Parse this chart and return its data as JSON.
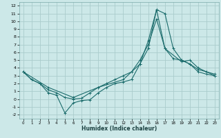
{
  "xlabel": "Humidex (Indice chaleur)",
  "bg_color": "#cce8e8",
  "grid_color": "#aacccc",
  "line_color": "#1a6b6b",
  "xlim": [
    -0.5,
    23.5
  ],
  "ylim": [
    -2.5,
    12.5
  ],
  "xticks": [
    0,
    1,
    2,
    3,
    4,
    5,
    6,
    7,
    8,
    9,
    10,
    11,
    12,
    13,
    14,
    15,
    16,
    17,
    18,
    19,
    20,
    21,
    22,
    23
  ],
  "yticks": [
    -2,
    -1,
    0,
    1,
    2,
    3,
    4,
    5,
    6,
    7,
    8,
    9,
    10,
    11,
    12
  ],
  "line1_x": [
    0,
    1,
    2,
    3,
    4,
    5,
    6,
    7,
    8,
    9,
    10,
    11,
    12,
    13,
    14,
    15,
    16,
    17,
    18,
    19,
    20,
    21,
    22,
    23
  ],
  "line1_y": [
    3.5,
    2.5,
    2.0,
    0.8,
    0.5,
    -1.8,
    -0.5,
    -0.2,
    -0.1,
    0.8,
    1.5,
    2.0,
    2.2,
    2.5,
    4.5,
    7.5,
    11.5,
    11.0,
    6.5,
    5.0,
    4.5,
    3.5,
    3.2,
    3.0
  ],
  "line2_x": [
    0,
    1,
    2,
    3,
    4,
    5,
    6,
    7,
    8,
    9,
    10,
    11,
    12,
    13,
    14,
    15,
    16,
    17,
    18,
    19,
    20,
    21,
    22,
    23
  ],
  "line2_y": [
    3.5,
    2.5,
    2.0,
    1.2,
    0.8,
    0.2,
    0.0,
    0.1,
    0.8,
    1.5,
    2.0,
    2.5,
    3.0,
    3.5,
    5.0,
    7.0,
    10.3,
    6.5,
    5.2,
    5.0,
    4.5,
    3.8,
    3.5,
    3.2
  ],
  "line3_x": [
    0,
    3,
    6,
    9,
    12,
    14,
    15,
    16,
    17,
    19,
    20,
    21,
    22,
    23
  ],
  "line3_y": [
    3.5,
    1.5,
    0.2,
    1.5,
    2.5,
    4.5,
    6.5,
    11.5,
    6.5,
    4.8,
    5.0,
    4.0,
    3.5,
    3.0
  ]
}
